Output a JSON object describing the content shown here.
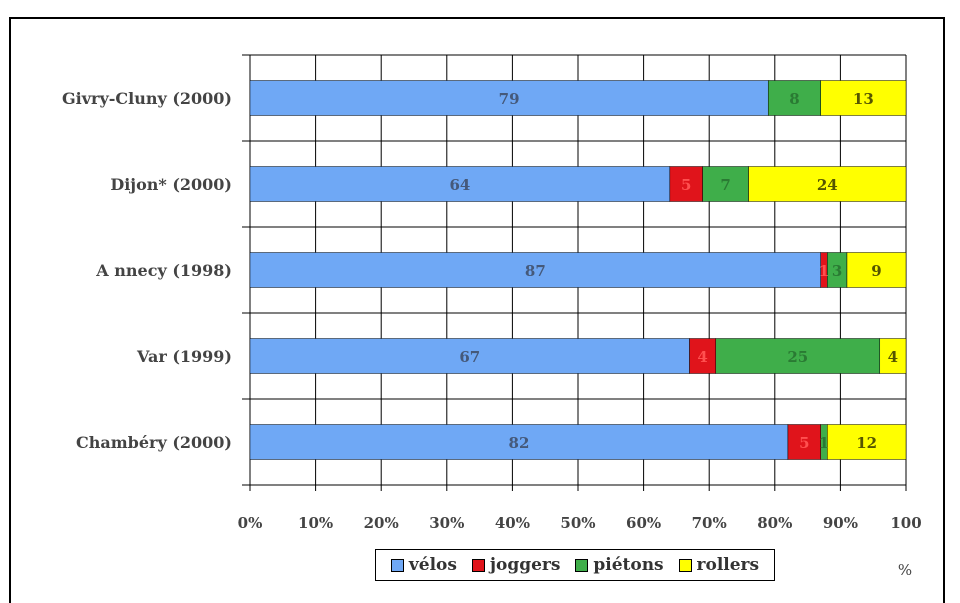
{
  "chart_data": {
    "type": "bar",
    "orientation": "horizontal",
    "stacked": true,
    "categories": [
      "Givry-Cluny (2000)",
      "Dijon* (2000)",
      "A nnecy (1998)",
      "Var (1999)",
      "Chambéry (2000)"
    ],
    "series": [
      {
        "name": "vélos",
        "color": "#6fa8f5",
        "values": [
          79,
          64,
          87,
          67,
          82
        ],
        "labels": [
          "79",
          "64",
          "87",
          "67",
          "82"
        ]
      },
      {
        "name": "joggers",
        "color": "#e0141b",
        "values": [
          0,
          5,
          1,
          4,
          5
        ],
        "labels": [
          "",
          "5",
          "1",
          "4",
          "5"
        ]
      },
      {
        "name": "piétons",
        "color": "#3fae4a",
        "values": [
          8,
          7,
          3,
          25,
          1
        ],
        "labels": [
          "8",
          "7",
          "3",
          "25",
          "1"
        ]
      },
      {
        "name": "rollers",
        "color": "#ffff00",
        "values": [
          13,
          24,
          9,
          4,
          12
        ],
        "labels": [
          "13",
          "24",
          "9",
          "4",
          "12"
        ]
      }
    ],
    "x_ticks": [
      "0%",
      "10%",
      "20%",
      "30%",
      "40%",
      "50%",
      "60%",
      "70%",
      "80%",
      "90%",
      "100"
    ],
    "x_unit_label": "%",
    "xlim": [
      0,
      100
    ],
    "grid": true,
    "legend_position": "bottom-center"
  },
  "legend": [
    {
      "label": "vélos",
      "color": "#6fa8f5"
    },
    {
      "label": "joggers",
      "color": "#e0141b"
    },
    {
      "label": "piétons",
      "color": "#3fae4a"
    },
    {
      "label": "rollers",
      "color": "#ffff00"
    }
  ]
}
